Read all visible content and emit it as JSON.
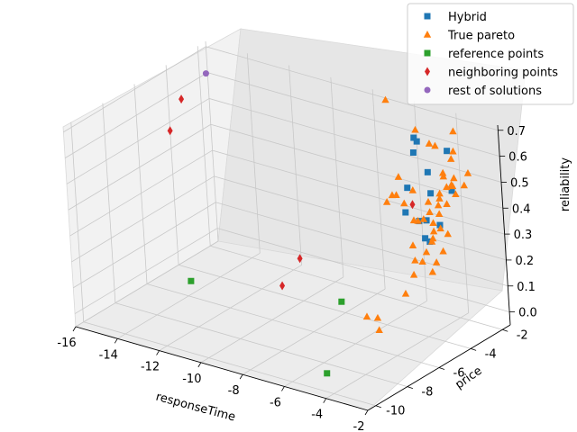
{
  "chart_data": {
    "type": "scatter",
    "projection": "3d",
    "title": "",
    "xlabel": "responseTime",
    "ylabel": "price",
    "zlabel": "reliability",
    "xlim": [
      -16,
      -2
    ],
    "ylim": [
      -10.5,
      -1.5
    ],
    "zlim": [
      -0.05,
      0.72
    ],
    "xticks": [
      "-16",
      "-14",
      "-12",
      "-10",
      "-8",
      "-6",
      "-4",
      "-2"
    ],
    "yticks": [
      "-10",
      "-8",
      "-6",
      "-4",
      "-2"
    ],
    "zticks": [
      "0.0",
      "0.1",
      "0.2",
      "0.3",
      "0.4",
      "0.5",
      "0.6",
      "0.7"
    ],
    "grid": true,
    "legend_position": "top-right",
    "series": [
      {
        "name": "Hybrid",
        "marker": "square",
        "color": "#1f77b4",
        "points": [
          [
            -5.5,
            -2.3,
            0.62
          ],
          [
            -5.2,
            -2.5,
            0.62
          ],
          [
            -5.0,
            -3.0,
            0.6
          ],
          [
            -4.2,
            -3.2,
            0.55
          ],
          [
            -4.6,
            -4.0,
            0.51
          ],
          [
            -4.2,
            -4.7,
            0.45
          ],
          [
            -3.4,
            -4.1,
            0.52
          ],
          [
            -3.0,
            -5.4,
            0.47
          ],
          [
            -2.8,
            -5.2,
            0.47
          ],
          [
            -2.6,
            -5.6,
            0.42
          ],
          [
            -2.7,
            -5.2,
            0.39
          ],
          [
            -2.4,
            -4.9,
            0.45
          ],
          [
            -3.0,
            -3.3,
            0.51
          ],
          [
            -4.0,
            -2.2,
            0.6
          ]
        ]
      },
      {
        "name": "True pareto",
        "marker": "triangle",
        "color": "#ff7f0e",
        "points": [
          [
            -7.0,
            -2.0,
            0.72
          ],
          [
            -5.0,
            -2.8,
            0.68
          ],
          [
            -3.8,
            -3.5,
            0.68
          ],
          [
            -3.4,
            -2.5,
            0.7
          ],
          [
            -3.2,
            -3.9,
            0.7
          ],
          [
            -2.9,
            -3.2,
            0.66
          ],
          [
            -2.7,
            -3.6,
            0.65
          ],
          [
            -2.5,
            -4.4,
            0.63
          ],
          [
            -2.3,
            -4.0,
            0.6
          ],
          [
            -2.2,
            -4.6,
            0.59
          ],
          [
            -2.1,
            -5.2,
            0.57
          ],
          [
            -2.0,
            -4.9,
            0.54
          ],
          [
            -2.0,
            -5.4,
            0.52
          ],
          [
            -2.0,
            -5.8,
            0.5
          ],
          [
            -1.9,
            -5.5,
            0.47
          ],
          [
            -1.9,
            -6.0,
            0.45
          ],
          [
            -2.4,
            -3.0,
            0.58
          ],
          [
            -2.3,
            -3.4,
            0.55
          ],
          [
            -2.6,
            -3.8,
            0.56
          ],
          [
            -2.8,
            -4.3,
            0.54
          ],
          [
            -2.5,
            -4.8,
            0.52
          ],
          [
            -2.7,
            -5.1,
            0.5
          ],
          [
            -2.9,
            -5.6,
            0.48
          ],
          [
            -3.1,
            -5.0,
            0.46
          ],
          [
            -2.4,
            -5.3,
            0.44
          ],
          [
            -2.2,
            -5.7,
            0.42
          ],
          [
            -2.1,
            -6.2,
            0.4
          ],
          [
            -2.0,
            -6.6,
            0.38
          ],
          [
            -1.8,
            -6.0,
            0.36
          ],
          [
            -1.7,
            -6.4,
            0.34
          ],
          [
            -1.8,
            -5.2,
            0.44
          ],
          [
            -1.6,
            -5.8,
            0.4
          ],
          [
            -2.3,
            -6.8,
            0.33
          ],
          [
            -2.6,
            -6.3,
            0.36
          ],
          [
            -2.9,
            -6.0,
            0.4
          ],
          [
            -3.5,
            -5.1,
            0.45
          ],
          [
            -3.3,
            -4.4,
            0.5
          ],
          [
            -3.7,
            -4.8,
            0.55
          ],
          [
            -4.0,
            -5.0,
            0.5
          ],
          [
            -4.6,
            -4.5,
            0.57
          ],
          [
            -4.4,
            -5.2,
            0.53
          ],
          [
            -5.0,
            -4.2,
            0.48
          ],
          [
            -5.8,
            -3.8,
            0.42
          ],
          [
            -3.0,
            -6.5,
            0.23
          ],
          [
            -4.2,
            -6.8,
            0.12
          ],
          [
            -3.6,
            -8.2,
            0.19
          ],
          [
            -3.2,
            -8.0,
            0.14
          ],
          [
            -2.0,
            -5.0,
            0.65
          ],
          [
            -1.9,
            -4.6,
            0.6
          ],
          [
            -2.1,
            -4.2,
            0.55
          ]
        ]
      },
      {
        "name": "reference points",
        "marker": "square",
        "color": "#2ca02c",
        "points": [
          [
            -14.0,
            -5.8,
            0.0
          ],
          [
            -4.6,
            -9.6,
            0.0
          ],
          [
            -8.0,
            -4.2,
            0.0
          ]
        ]
      },
      {
        "name": "neighboring points",
        "marker": "diamond",
        "color": "#d62728",
        "points": [
          [
            -16.0,
            -3.2,
            0.56
          ],
          [
            -14.8,
            -5.5,
            0.55
          ],
          [
            -9.5,
            -4.7,
            0.15
          ],
          [
            -8.6,
            -7.0,
            0.15
          ],
          [
            -4.4,
            -4.0,
            0.45
          ]
        ]
      },
      {
        "name": "rest of solutions",
        "marker": "circle",
        "color": "#9467bd",
        "points": [
          [
            -16.0,
            -1.6,
            0.6
          ]
        ]
      }
    ]
  }
}
